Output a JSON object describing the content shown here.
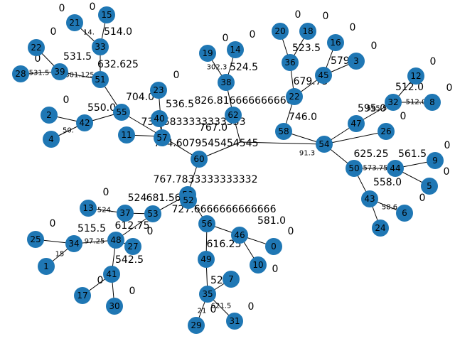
{
  "colors": {
    "node": "#1f77b4",
    "edge": "#000000",
    "text": "#000000",
    "background": "#ffffff"
  },
  "nodes": [
    {
      "id": "15",
      "value": "0"
    },
    {
      "id": "21",
      "value": "0"
    },
    {
      "id": "33",
      "value": "514.0"
    },
    {
      "id": "22",
      "value": "0"
    },
    {
      "id": "28",
      "value": "0"
    },
    {
      "id": "39",
      "value": "531.5"
    },
    {
      "id": "51",
      "value": "632.625"
    },
    {
      "id": "20",
      "value": "0"
    },
    {
      "id": "18",
      "value": "0"
    },
    {
      "id": "16",
      "value": "0"
    },
    {
      "id": "3",
      "value": "0"
    },
    {
      "id": "19",
      "value": "0"
    },
    {
      "id": "14",
      "value": "0"
    },
    {
      "id": "36",
      "value": "523.5"
    },
    {
      "id": "45",
      "value": "579.5"
    },
    {
      "id": "12",
      "value": "0"
    },
    {
      "id": "38",
      "value": "524.5"
    },
    {
      "id": "23",
      "value": "0"
    },
    {
      "id": "22",
      "value": "679.75"
    },
    {
      "id": "32",
      "value": "512.0"
    },
    {
      "id": "8",
      "value": "0"
    },
    {
      "id": "2",
      "value": "0"
    },
    {
      "id": "55",
      "value": "704.0"
    },
    {
      "id": "40",
      "value": "536.5"
    },
    {
      "id": "62",
      "value": "826.8166666666667"
    },
    {
      "id": "42",
      "value": "550.0"
    },
    {
      "id": "4",
      "value": ""
    },
    {
      "id": "11",
      "value": "739.5833333333333"
    },
    {
      "id": "57",
      "value": "794.6079545454545"
    },
    {
      "id": "58",
      "value": "767.0"
    },
    {
      "id": "54",
      "value": "746.0"
    },
    {
      "id": "47",
      "value": "595.0"
    },
    {
      "id": "26",
      "value": "0"
    },
    {
      "id": "60",
      "value": "0"
    },
    {
      "id": "9",
      "value": "0"
    },
    {
      "id": "50",
      "value": "625.25"
    },
    {
      "id": "44",
      "value": "561.5"
    },
    {
      "id": "5",
      "value": "0"
    },
    {
      "id": "13",
      "value": "0"
    },
    {
      "id": "59",
      "value": "767.7833333333332"
    },
    {
      "id": "43",
      "value": "558.0"
    },
    {
      "id": "6",
      "value": "0"
    },
    {
      "id": "37",
      "value": "524"
    },
    {
      "id": "53",
      "value": "681.5625"
    },
    {
      "id": "52",
      "value": "727.6666666666666"
    },
    {
      "id": "24",
      "value": "0"
    },
    {
      "id": "25",
      "value": "0"
    },
    {
      "id": "34",
      "value": "515.5"
    },
    {
      "id": "48",
      "value": "612.75"
    },
    {
      "id": "27",
      "value": "0"
    },
    {
      "id": "56",
      "value": "581.0"
    },
    {
      "id": "46",
      "value": ""
    },
    {
      "id": "0",
      "value": "0"
    },
    {
      "id": "1",
      "value": "0"
    },
    {
      "id": "49",
      "value": "616.25"
    },
    {
      "id": "10",
      "value": "0"
    },
    {
      "id": "41",
      "value": "542.5"
    },
    {
      "id": "7",
      "value": "0"
    },
    {
      "id": "17",
      "value": "0"
    },
    {
      "id": "30",
      "value": "0"
    },
    {
      "id": "35",
      "value": "521.5"
    },
    {
      "id": "29",
      "value": "0"
    },
    {
      "id": "31",
      "value": "0"
    }
  ],
  "edge_labels": [
    "14.",
    "531.5",
    "501.125",
    "550.0",
    "54.",
    "50.",
    "302.3",
    "523.5",
    "579.5",
    "512.0",
    "595.5",
    "561.5",
    "558.0",
    "515.5",
    "97.25",
    "524.",
    "542.",
    "542.",
    "15",
    "621.5",
    "21",
    "14",
    "91.3",
    "573.75",
    "58.6",
    "5"
  ]
}
